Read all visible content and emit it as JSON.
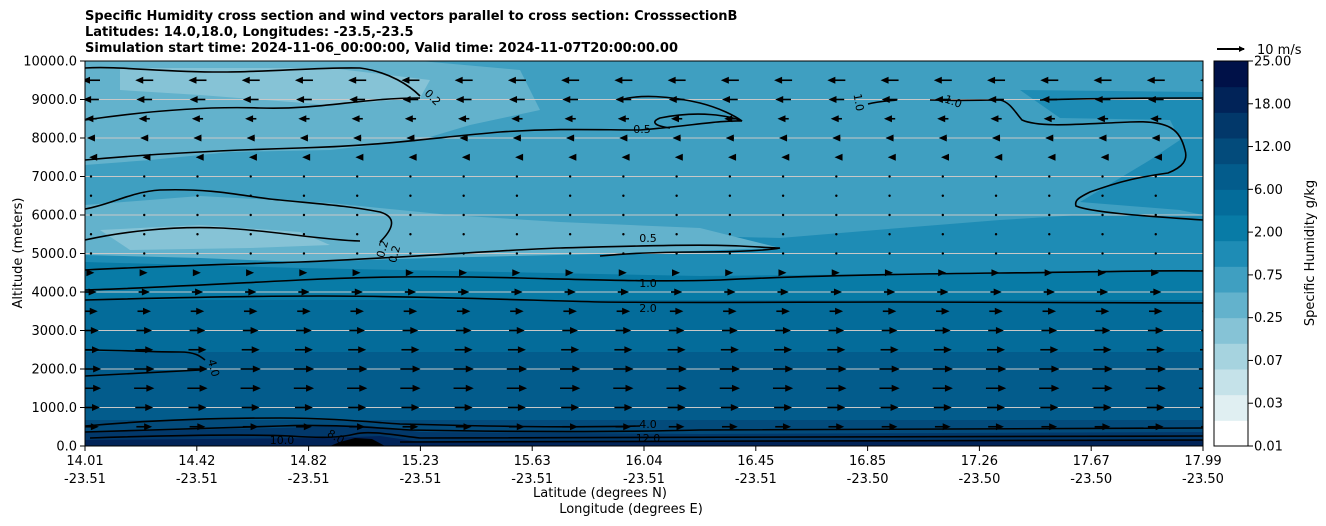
{
  "chart_data": {
    "type": "heatmap",
    "title_lines": [
      "Specific Humidity cross section and wind vectors parallel to cross section: CrosssectionB",
      "Latitudes: 14.0,18.0, Longitudes: -23.5,-23.5",
      "Simulation start time: 2024-11-06_00:00:00, Valid time: 2024-11-07T20:00:00.00"
    ],
    "ylabel": "Altitude (meters)",
    "xlabel_lat": "Latitude (degrees N)",
    "xlabel_lon": "Longitude (degrees E)",
    "ylim": [
      0,
      10000
    ],
    "xlim": [
      0,
      10
    ],
    "y_ticks": [
      "0.0",
      "1000.0",
      "2000.0",
      "3000.0",
      "4000.0",
      "5000.0",
      "6000.0",
      "7000.0",
      "8000.0",
      "9000.0",
      "10000.0"
    ],
    "x_ticks": [
      {
        "lat": "14.01",
        "lon": "-23.51"
      },
      {
        "lat": "14.42",
        "lon": "-23.51"
      },
      {
        "lat": "14.82",
        "lon": "-23.51"
      },
      {
        "lat": "15.23",
        "lon": "-23.51"
      },
      {
        "lat": "15.63",
        "lon": "-23.51"
      },
      {
        "lat": "16.04",
        "lon": "-23.51"
      },
      {
        "lat": "16.45",
        "lon": "-23.51"
      },
      {
        "lat": "16.85",
        "lon": "-23.50"
      },
      {
        "lat": "17.26",
        "lon": "-23.50"
      },
      {
        "lat": "17.67",
        "lon": "-23.50"
      },
      {
        "lat": "17.99",
        "lon": "-23.50"
      }
    ],
    "colorbar": {
      "label": "Specific Humidity g/kg",
      "levels": [
        "0.01",
        "0.03",
        "0.07",
        "0.25",
        "0.75",
        "2.00",
        "6.00",
        "12.00",
        "18.00",
        "25.00"
      ],
      "colors": [
        "#ffffff",
        "#e0eff2",
        "#c5e2e9",
        "#a6d3df",
        "#86c3d6",
        "#63b2cc",
        "#3f9fc1",
        "#1e8cb5",
        "#087ba6",
        "#046c9a",
        "#035c8c",
        "#034b7b",
        "#02386a",
        "#012358",
        "#001148"
      ]
    },
    "contour_labels": [
      "0.2",
      "0.5",
      "1.0",
      "2.0",
      "4.0",
      "8.0",
      "10.0",
      "12.0"
    ],
    "quiver_key": "10 m/s",
    "wind_profile": [
      {
        "z": 500,
        "u": 3.5
      },
      {
        "z": 1000,
        "u": 4.0
      },
      {
        "z": 1500,
        "u": 4.5
      },
      {
        "z": 2000,
        "u": 4.5
      },
      {
        "z": 2500,
        "u": 4.0
      },
      {
        "z": 3000,
        "u": 3.5
      },
      {
        "z": 3500,
        "u": 3.0
      },
      {
        "z": 4000,
        "u": 2.5
      },
      {
        "z": 4500,
        "u": 1.5
      },
      {
        "z": 5000,
        "u": 0.5
      },
      {
        "z": 5500,
        "u": 0.3
      },
      {
        "z": 6000,
        "u": 0.3
      },
      {
        "z": 6500,
        "u": 0.3
      },
      {
        "z": 7000,
        "u": 0.3
      },
      {
        "z": 7500,
        "u": -0.8
      },
      {
        "z": 8000,
        "u": -1.8
      },
      {
        "z": 8500,
        "u": -2.5
      },
      {
        "z": 9000,
        "u": -3.5
      },
      {
        "z": 9500,
        "u": -4.0
      }
    ]
  }
}
